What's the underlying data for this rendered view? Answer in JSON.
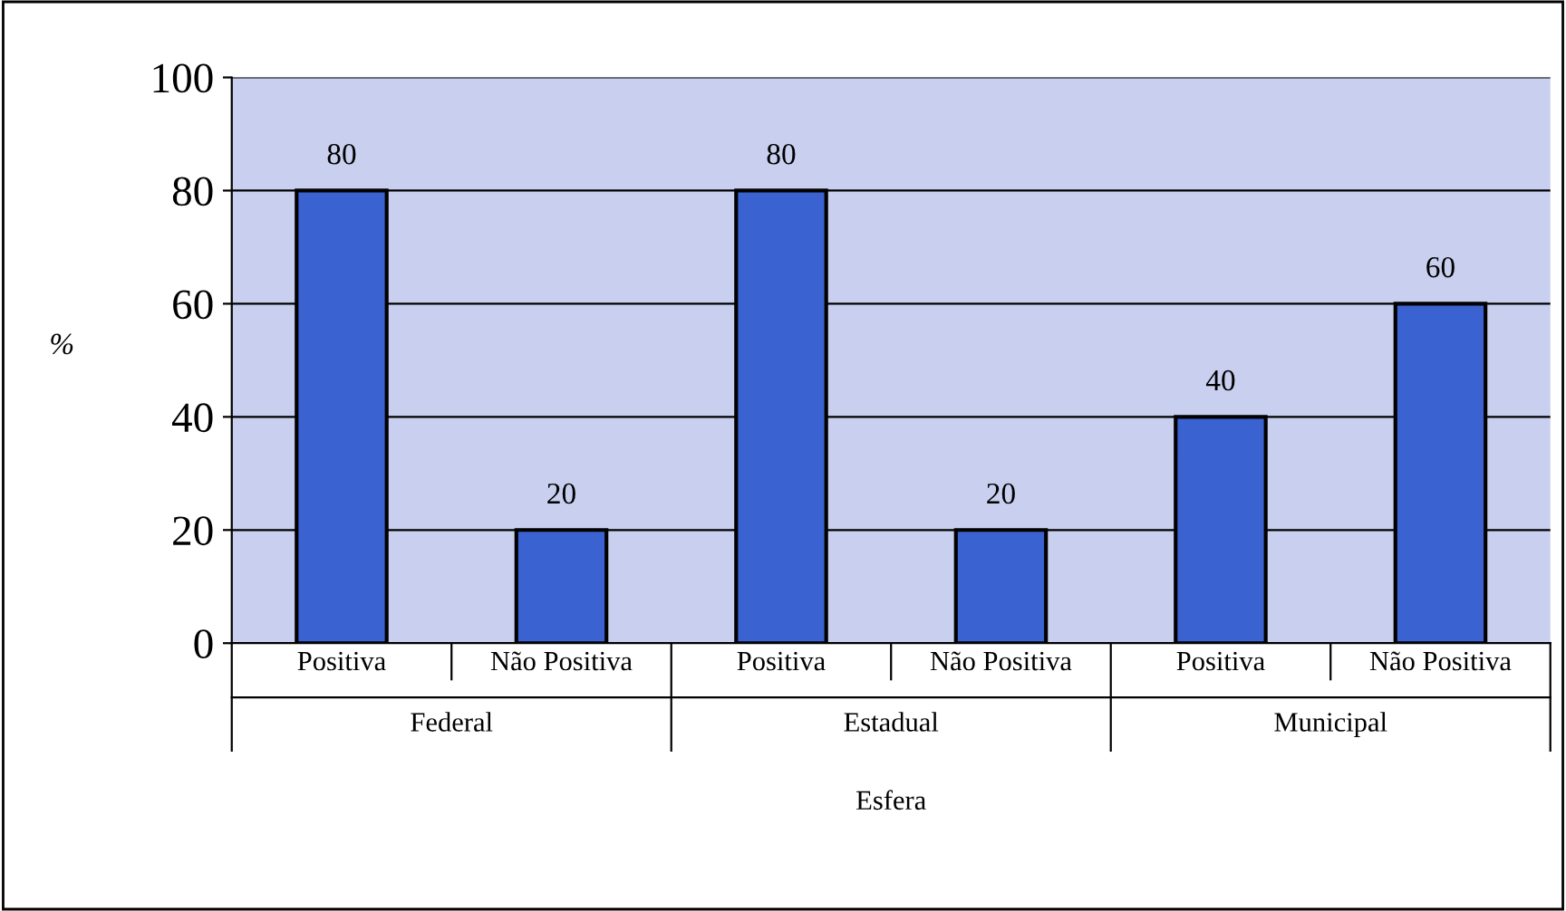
{
  "chart_data": {
    "type": "bar",
    "ylabel": "%",
    "xlabel": "Esfera",
    "categories": [
      "Positiva",
      "Não Positiva",
      "Positiva",
      "Não Positiva",
      "Positiva",
      "Não Positiva"
    ],
    "values": [
      80,
      20,
      80,
      20,
      40,
      60
    ],
    "color": "#3a62d0",
    "annotations": [
      "Federal",
      "Estadual",
      "Municipal"
    ],
    "ylim": [
      0,
      100
    ],
    "yticks": [
      0,
      20,
      40,
      60,
      80,
      100
    ],
    "grid": "y",
    "data_labels": true
  }
}
